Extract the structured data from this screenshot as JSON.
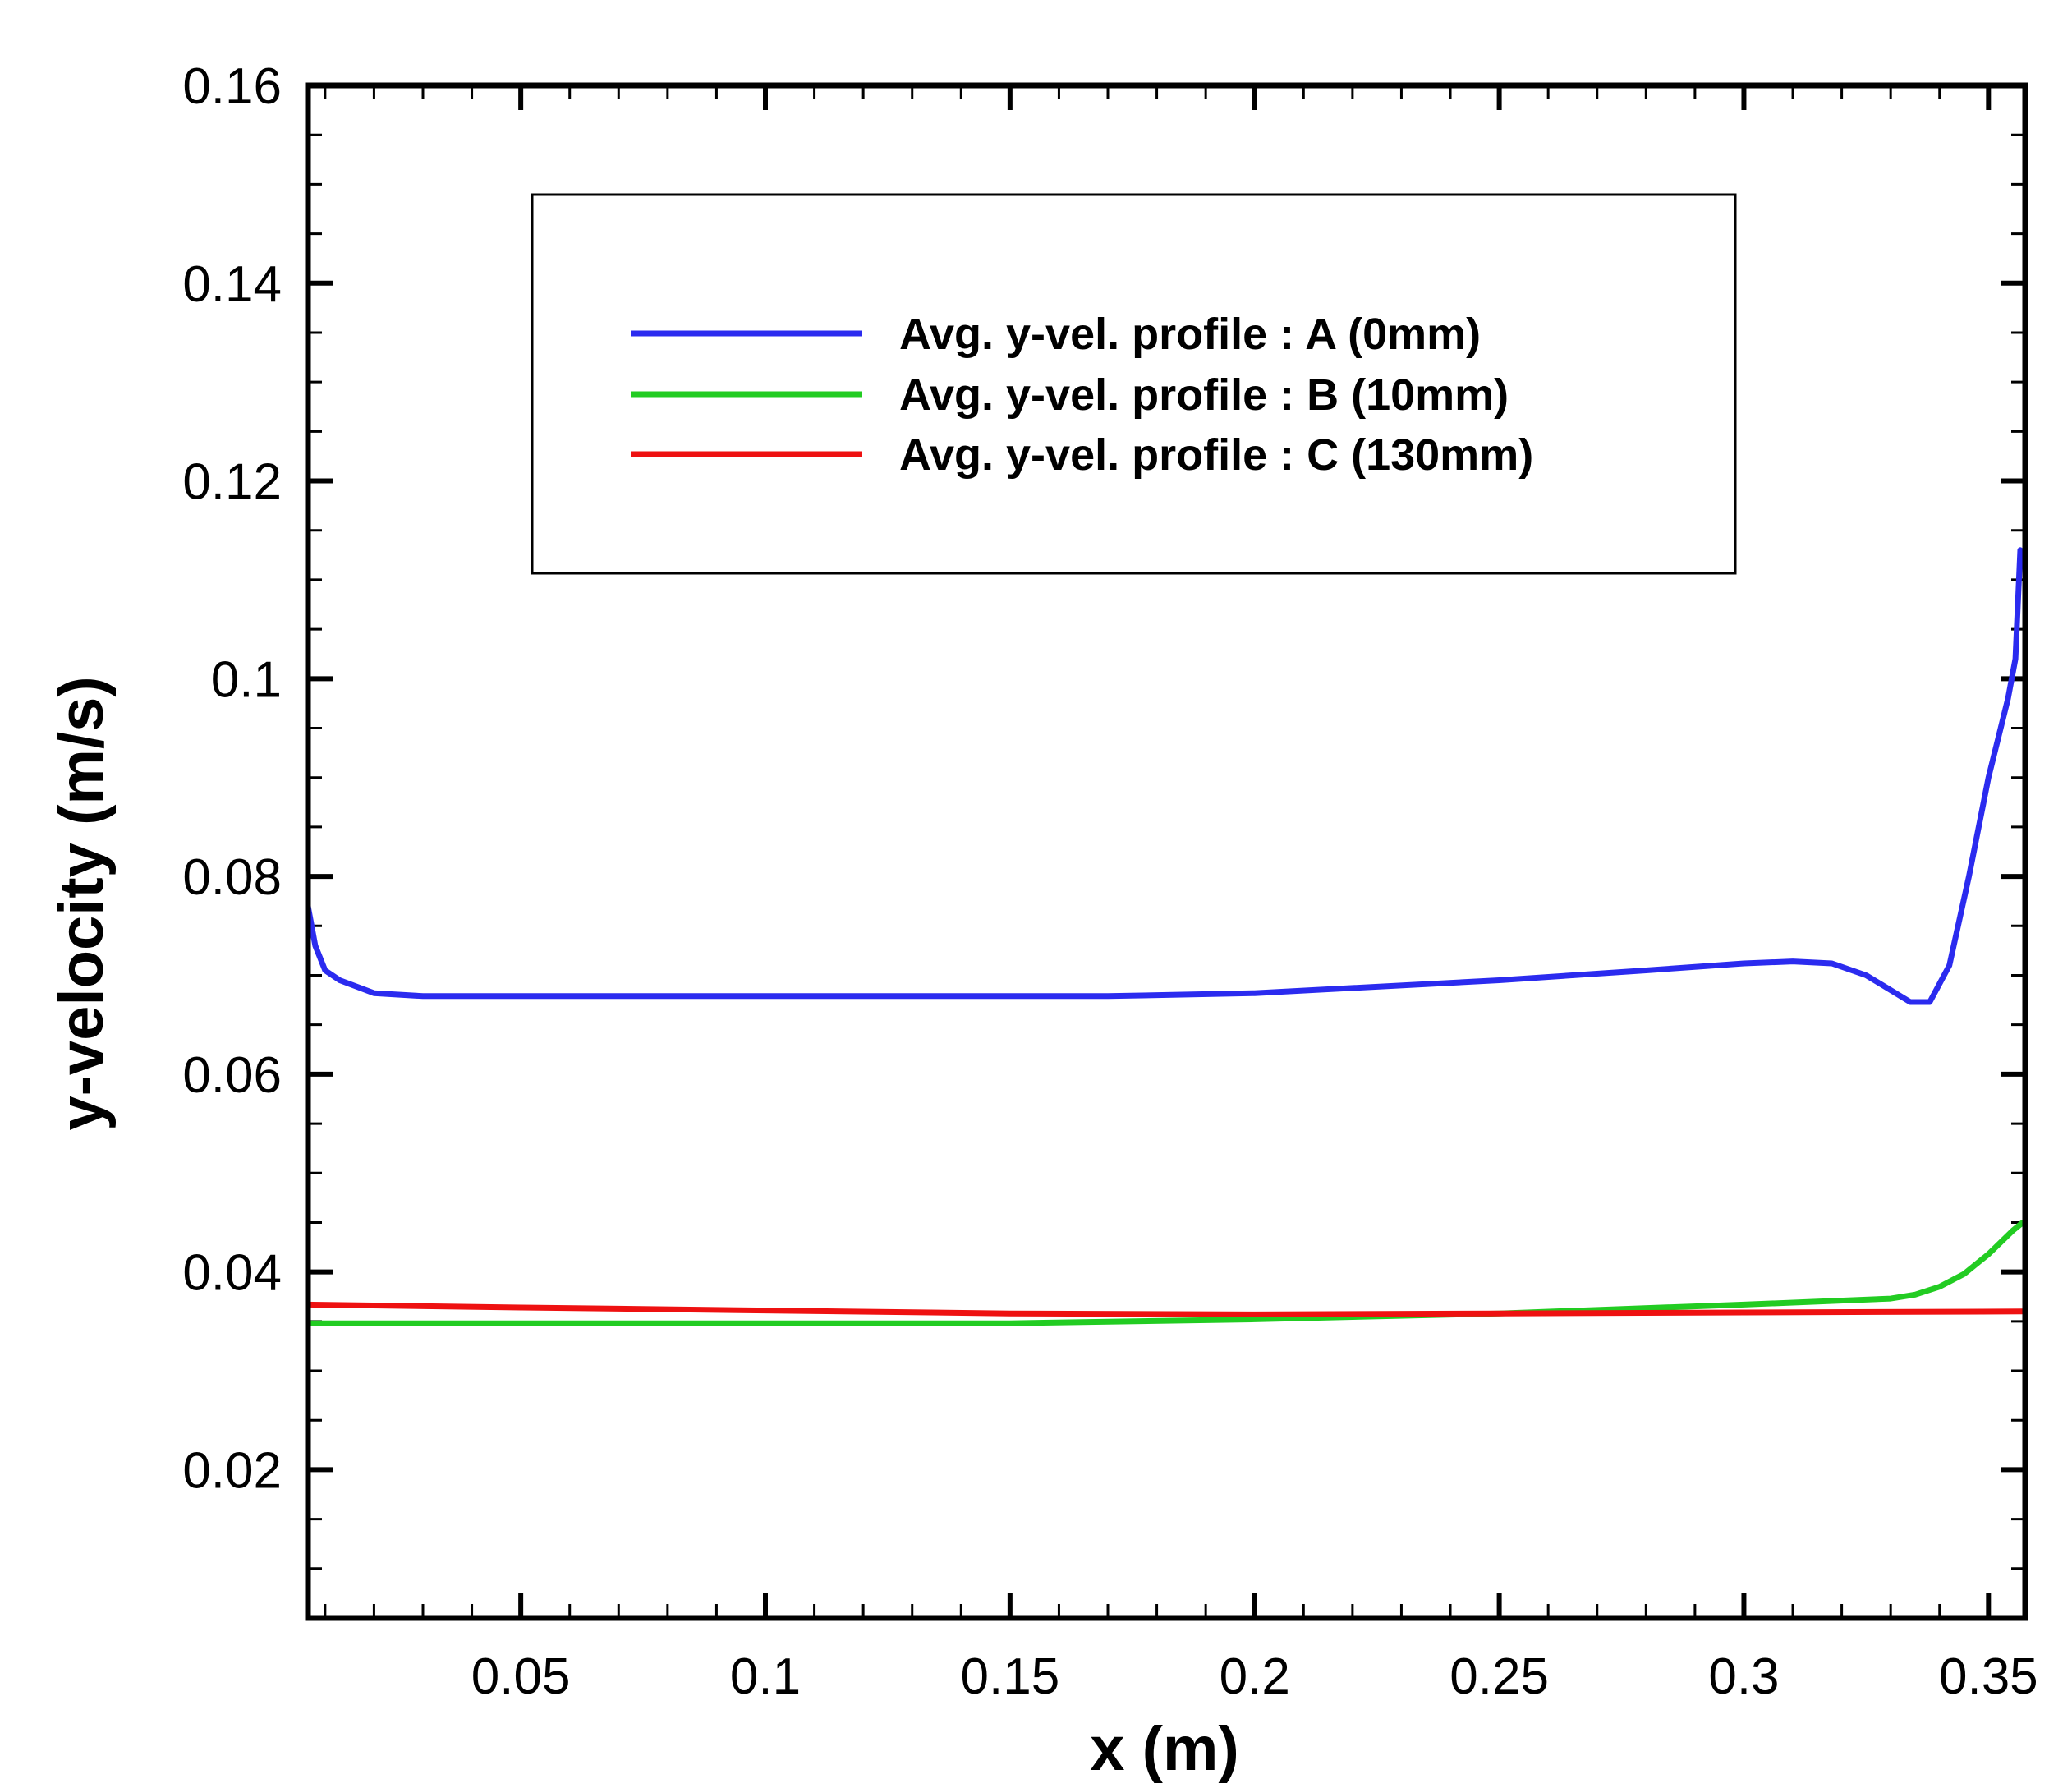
{
  "chart_data": {
    "type": "line",
    "title": "",
    "xlabel": "x (m)",
    "ylabel": "y-velocity (m/s)",
    "xlim": [
      0.0065,
      0.3575
    ],
    "ylim": [
      0.005,
      0.16
    ],
    "xticks": [
      0.05,
      0.1,
      0.15,
      0.2,
      0.25,
      0.3,
      0.35
    ],
    "xtick_labels": [
      "0.05",
      "0.1",
      "0.15",
      "0.2",
      "0.25",
      "0.3",
      "0.35"
    ],
    "yticks": [
      0.02,
      0.04,
      0.06,
      0.08,
      0.1,
      0.12,
      0.14,
      0.16
    ],
    "ytick_labels": [
      "0.02",
      "0.04",
      "0.06",
      "0.08",
      "0.1",
      "0.12",
      "0.14",
      "0.16"
    ],
    "grid": false,
    "legend_position": "top-center",
    "series": [
      {
        "name": "Avg. y-vel. profile : A (0mm)",
        "color": "#2b2bef",
        "x": [
          0.0065,
          0.008,
          0.01,
          0.013,
          0.02,
          0.03,
          0.05,
          0.1,
          0.15,
          0.17,
          0.2,
          0.25,
          0.28,
          0.3,
          0.31,
          0.318,
          0.325,
          0.33,
          0.334,
          0.338,
          0.342,
          0.346,
          0.35,
          0.354,
          0.3555,
          0.3565
        ],
        "values": [
          0.077,
          0.073,
          0.0705,
          0.0695,
          0.0682,
          0.0679,
          0.0679,
          0.0679,
          0.0679,
          0.0679,
          0.0682,
          0.0695,
          0.0705,
          0.0712,
          0.0714,
          0.0712,
          0.07,
          0.0685,
          0.0673,
          0.0673,
          0.071,
          0.08,
          0.09,
          0.098,
          0.102,
          0.113
        ]
      },
      {
        "name": "Avg. y-vel. profile : B (10mm)",
        "color": "#22cc22",
        "x": [
          0.0065,
          0.05,
          0.1,
          0.15,
          0.2,
          0.25,
          0.3,
          0.33,
          0.335,
          0.34,
          0.345,
          0.35,
          0.355,
          0.357
        ],
        "values": [
          0.0348,
          0.0348,
          0.0348,
          0.0348,
          0.0352,
          0.0358,
          0.0367,
          0.0373,
          0.0377,
          0.0385,
          0.0398,
          0.0418,
          0.0442,
          0.045
        ]
      },
      {
        "name": "Avg. y-vel. profile : C (130mm)",
        "color": "#ee1111",
        "x": [
          0.0065,
          0.05,
          0.1,
          0.15,
          0.2,
          0.25,
          0.3,
          0.357
        ],
        "values": [
          0.0367,
          0.0364,
          0.0361,
          0.0358,
          0.0357,
          0.0358,
          0.0359,
          0.036
        ]
      }
    ]
  }
}
